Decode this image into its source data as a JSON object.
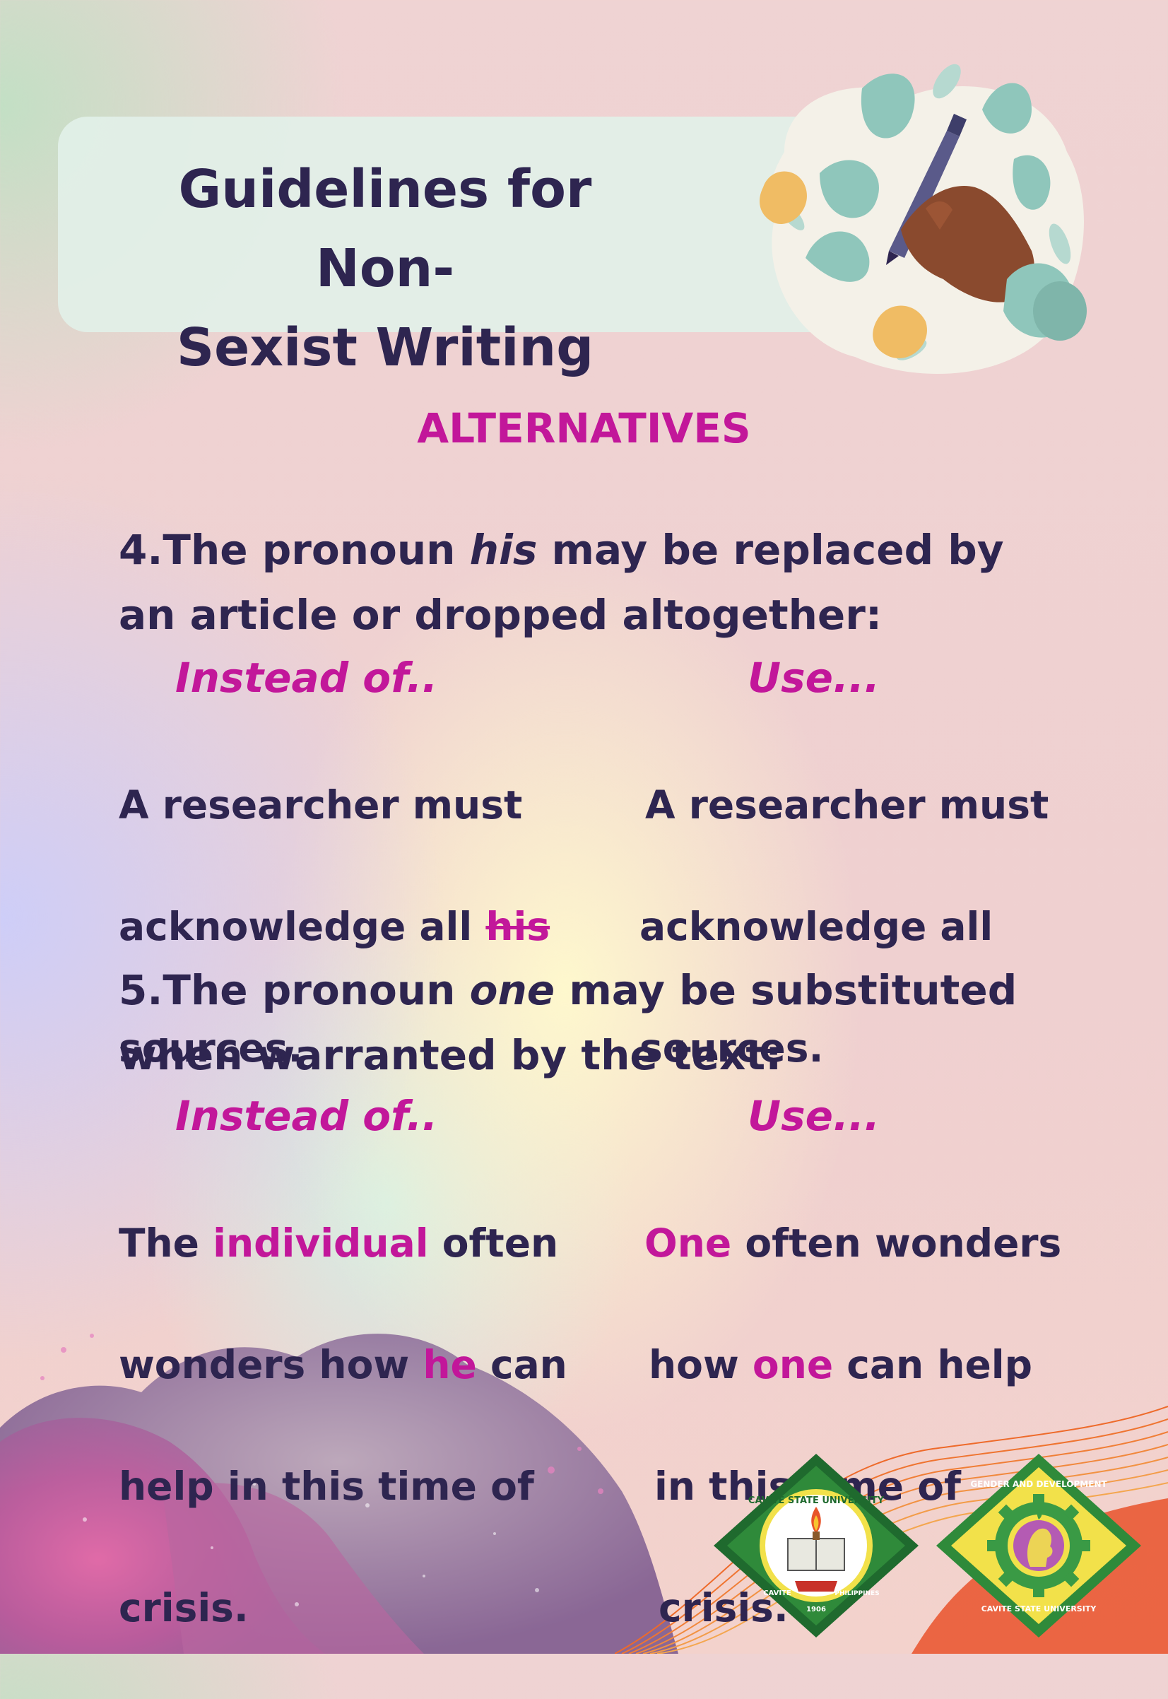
{
  "header": {
    "title_line1": "Guidelines for Non-",
    "title_line2": "Sexist Writing"
  },
  "section_heading": "ALTERNATIVES",
  "item4": {
    "number": "4.",
    "pre": "The pronoun ",
    "em": "his",
    "post": " may be replaced by",
    "line2": "an article or dropped altogether:",
    "instead_label": "Instead of..",
    "use_label": "Use...",
    "instead": {
      "l1": "A researcher must",
      "l2a": "acknowledge all ",
      "l2b": "his",
      "l3": "sources."
    },
    "use": {
      "l1": "A researcher must",
      "l2": "acknowledge all",
      "l3": "sources."
    }
  },
  "item5": {
    "number": "5.",
    "pre": "The pronoun ",
    "em": "one",
    "post": " may be substituted",
    "line2": "when warranted by the text:",
    "instead_label": "Instead of..",
    "use_label": "Use...",
    "instead": {
      "l1a": "The ",
      "l1b": "individual",
      "l1c": " often",
      "l2a": "wonders how ",
      "l2b": "he",
      "l2c": " can",
      "l3": "help in this time of",
      "l4": "crisis."
    },
    "use": {
      "l1a": "One",
      "l1b": " often wonders",
      "l2a": "how ",
      "l2b": "one",
      "l2c": " can help",
      "l3": "in this time of",
      "l4": "crisis."
    }
  },
  "logos": {
    "cvsu": {
      "ring_text": "CAVITE STATE UNIVERSITY",
      "bottom_text": "CAVITE",
      "country": "PHILIPPINES",
      "year": "1906"
    },
    "gad": {
      "ring_text": "GENDER AND DEVELOPMENT",
      "bottom_text": "CAVITE STATE UNIVERSITY"
    }
  }
}
